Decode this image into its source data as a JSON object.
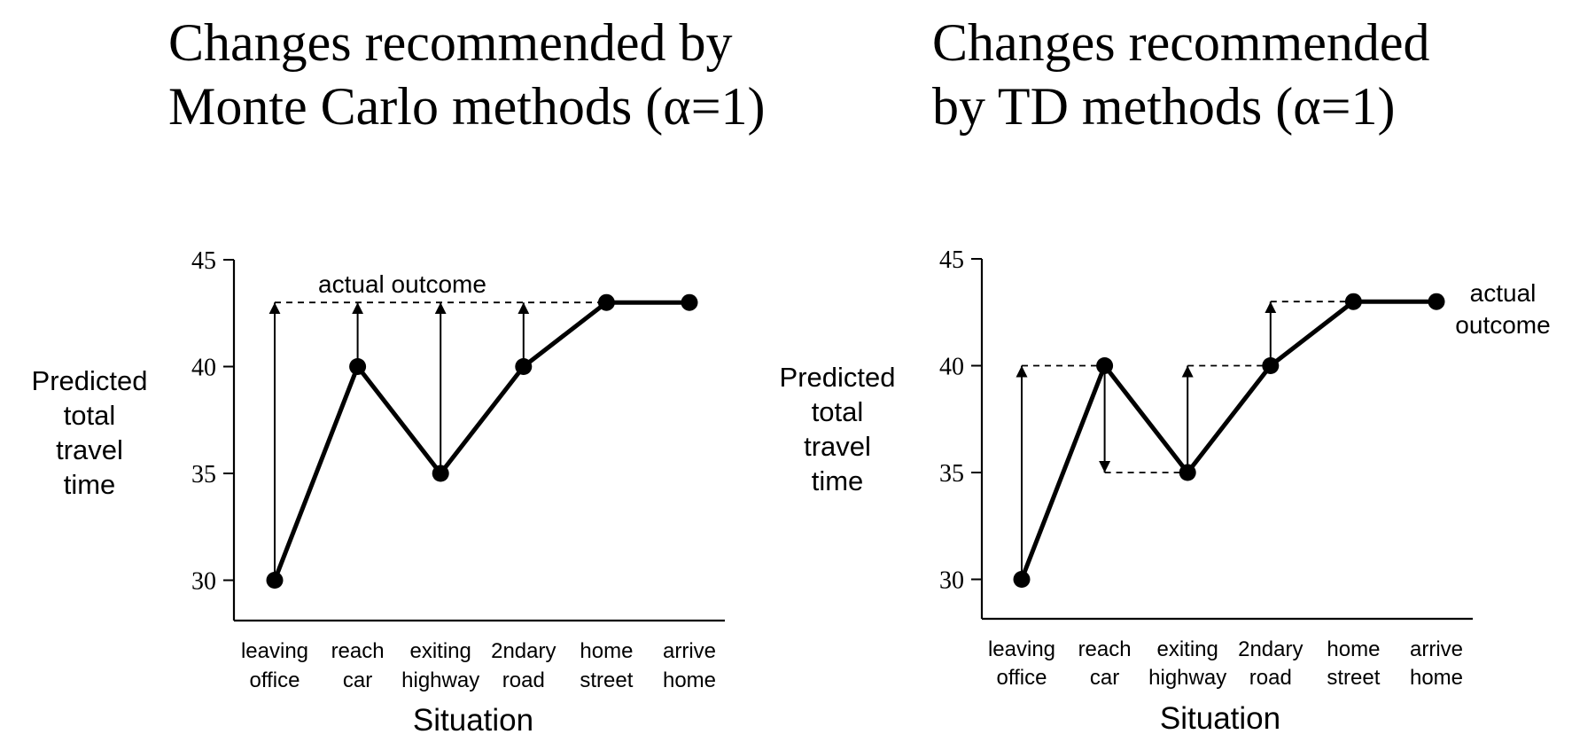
{
  "chart_data": [
    {
      "type": "line",
      "title_lines": [
        "Changes recommended by",
        "Monte Carlo methods (α=1)"
      ],
      "ylabel_lines": [
        "Predicted",
        "total",
        "travel",
        "time"
      ],
      "xlabel": "Situation",
      "categories": [
        [
          "leaving",
          "office"
        ],
        [
          "reach",
          "car"
        ],
        [
          "exiting",
          "highway"
        ],
        [
          "2ndary",
          "road"
        ],
        [
          "home",
          "street"
        ],
        [
          "arrive",
          "home"
        ]
      ],
      "values": [
        30,
        40,
        35,
        40,
        43,
        43
      ],
      "ylim": [
        26.2,
        45
      ],
      "yticks": [
        30,
        35,
        40,
        45
      ],
      "actual_outcome": 43,
      "annotation_lines": [
        "actual outcome"
      ],
      "annotation_position": "top-center",
      "update_arrows": [
        {
          "index": 0,
          "from": 30,
          "to": 43
        },
        {
          "index": 1,
          "from": 40,
          "to": 43
        },
        {
          "index": 2,
          "from": 35,
          "to": 43
        },
        {
          "index": 3,
          "from": 40,
          "to": 43
        }
      ],
      "target_lines": [
        {
          "from_index": 0,
          "to_index": 4,
          "value": 43
        }
      ]
    },
    {
      "type": "line",
      "title_lines": [
        "Changes recommended",
        "by TD methods (α=1)"
      ],
      "ylabel_lines": [
        "Predicted",
        "total",
        "travel",
        "time"
      ],
      "xlabel": "Situation",
      "categories": [
        [
          "leaving",
          "office"
        ],
        [
          "reach",
          "car"
        ],
        [
          "exiting",
          "highway"
        ],
        [
          "2ndary",
          "road"
        ],
        [
          "home",
          "street"
        ],
        [
          "arrive",
          "home"
        ]
      ],
      "values": [
        30,
        40,
        35,
        40,
        43,
        43
      ],
      "ylim": [
        26.2,
        45
      ],
      "yticks": [
        30,
        35,
        40,
        45
      ],
      "actual_outcome": 43,
      "annotation_lines": [
        "actual",
        "outcome"
      ],
      "annotation_position": "right",
      "update_arrows": [
        {
          "index": 0,
          "from": 30,
          "to": 40
        },
        {
          "index": 1,
          "from": 40,
          "to": 35
        },
        {
          "index": 2,
          "from": 35,
          "to": 40
        },
        {
          "index": 3,
          "from": 40,
          "to": 43
        }
      ],
      "target_lines": [
        {
          "from_index": 0,
          "to_index": 1,
          "value": 40
        },
        {
          "from_index": 1,
          "to_index": 2,
          "value": 35
        },
        {
          "from_index": 2,
          "to_index": 3,
          "value": 40
        },
        {
          "from_index": 3,
          "to_index": 4,
          "value": 43
        }
      ]
    }
  ]
}
